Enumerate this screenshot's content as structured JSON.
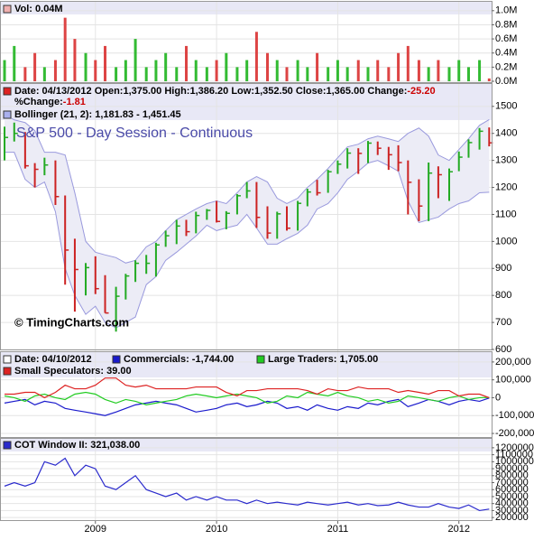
{
  "chart_data": [
    {
      "type": "bar",
      "legend": "Vol: 0.04M",
      "up_color": "#33bb33",
      "down_color": "#dd4444",
      "x": [
        2008.25,
        2008.33,
        2008.42,
        2008.5,
        2008.58,
        2008.67,
        2008.75,
        2008.83,
        2008.92,
        2009,
        2009.08,
        2009.17,
        2009.25,
        2009.33,
        2009.42,
        2009.5,
        2009.58,
        2009.67,
        2009.75,
        2009.83,
        2009.92,
        2010,
        2010.08,
        2010.17,
        2010.25,
        2010.33,
        2010.42,
        2010.5,
        2010.58,
        2010.67,
        2010.75,
        2010.83,
        2010.92,
        2011,
        2011.08,
        2011.17,
        2011.25,
        2011.33,
        2011.42,
        2011.5,
        2011.58,
        2011.67,
        2011.75,
        2011.83,
        2011.92,
        2012,
        2012.08,
        2012.17,
        2012.25
      ],
      "values": [
        0.3,
        0.5,
        0.2,
        0.4,
        0.2,
        0.3,
        0.9,
        0.6,
        0.4,
        0.3,
        0.5,
        0.2,
        0.3,
        0.6,
        0.2,
        0.3,
        0.4,
        0.2,
        0.5,
        0.3,
        0.2,
        0.3,
        0.4,
        0.2,
        0.3,
        0.7,
        0.4,
        0.3,
        0.2,
        0.3,
        0.2,
        0.4,
        0.2,
        0.3,
        0.2,
        0.3,
        0.2,
        0.3,
        0.2,
        0.4,
        0.5,
        0.3,
        0.2,
        0.3,
        0.2,
        0.3,
        0.2,
        0.3,
        0.04
      ],
      "xlim": [
        2008.22,
        2012.27
      ],
      "ylim": [
        0,
        1.1
      ],
      "yticks": [
        {
          "value": 0,
          "label": "0.0M"
        },
        {
          "value": 0.2,
          "label": "0.2M"
        },
        {
          "value": 0.4,
          "label": "0.4M"
        },
        {
          "value": 0.6,
          "label": "0.6M"
        },
        {
          "value": 0.8,
          "label": "0.8M"
        },
        {
          "value": 1,
          "label": "1.0M"
        }
      ]
    },
    {
      "type": "ohlc",
      "title": "S&P 500 - Day Session - Continuous",
      "annotation": "© TimingCharts.com",
      "header": [
        "Date: 04/13/2012",
        "Open:1,375.00",
        "High:1,386.20",
        "Low:1,352.50",
        "Close:1,365.00"
      ],
      "change": {
        "label": "Change:",
        "value": "-25.20"
      },
      "pct_change": {
        "label": "%Change:",
        "value": "-1.81"
      },
      "up_color": "#22aa22",
      "down_color": "#cc2222",
      "x": [
        2008.25,
        2008.33,
        2008.42,
        2008.5,
        2008.58,
        2008.67,
        2008.75,
        2008.83,
        2008.92,
        2009,
        2009.08,
        2009.17,
        2009.25,
        2009.33,
        2009.42,
        2009.5,
        2009.58,
        2009.67,
        2009.75,
        2009.83,
        2009.92,
        2010,
        2010.08,
        2010.17,
        2010.25,
        2010.33,
        2010.42,
        2010.5,
        2010.58,
        2010.67,
        2010.75,
        2010.83,
        2010.92,
        2011,
        2011.08,
        2011.17,
        2011.25,
        2011.33,
        2011.42,
        2011.5,
        2011.58,
        2011.67,
        2011.75,
        2011.83,
        2011.92,
        2012,
        2012.08,
        2012.17,
        2012.25
      ],
      "high": [
        1425,
        1440,
        1405,
        1290,
        1310,
        1300,
        1170,
        1010,
        920,
        945,
        875,
        832,
        880,
        930,
        950,
        995,
        1040,
        1080,
        1080,
        1110,
        1120,
        1150,
        1112,
        1175,
        1220,
        1220,
        1130,
        1110,
        1130,
        1150,
        1195,
        1228,
        1265,
        1300,
        1345,
        1345,
        1372,
        1370,
        1350,
        1356,
        1300,
        1230,
        1292,
        1278,
        1270,
        1333,
        1378,
        1420,
        1422
      ],
      "low": [
        1300,
        1370,
        1270,
        1200,
        1245,
        1135,
        840,
        740,
        800,
        805,
        735,
        666,
        785,
        850,
        880,
        870,
        980,
        990,
        1020,
        1030,
        1080,
        1070,
        1045,
        1100,
        1160,
        1050,
        1010,
        1010,
        1040,
        1040,
        1130,
        1170,
        1180,
        1250,
        1270,
        1250,
        1290,
        1320,
        1265,
        1260,
        1100,
        1075,
        1075,
        1160,
        1150,
        1260,
        1310,
        1340,
        1352
      ],
      "close": [
        1385,
        1400,
        1280,
        1267,
        1283,
        1166,
        968,
        896,
        903,
        825,
        735,
        797,
        872,
        919,
        919,
        987,
        1021,
        1057,
        1036,
        1096,
        1115,
        1074,
        1104,
        1169,
        1187,
        1089,
        1031,
        1102,
        1049,
        1141,
        1183,
        1180,
        1258,
        1286,
        1327,
        1326,
        1364,
        1345,
        1321,
        1292,
        1219,
        1131,
        1253,
        1247,
        1258,
        1312,
        1366,
        1408,
        1365
      ],
      "bollinger": {
        "name": "Bollinger (21, 2): 1,181.83 - 1,451.45",
        "color": "#9999dd",
        "fill": "#ececf6",
        "upper": [
          1470,
          1450,
          1440,
          1410,
          1330,
          1330,
          1320,
          1180,
          1000,
          960,
          950,
          940,
          920,
          930,
          980,
          1000,
          1040,
          1080,
          1100,
          1120,
          1140,
          1150,
          1140,
          1180,
          1220,
          1240,
          1220,
          1160,
          1140,
          1160,
          1200,
          1230,
          1270,
          1310,
          1350,
          1360,
          1380,
          1390,
          1380,
          1370,
          1400,
          1420,
          1390,
          1320,
          1300,
          1340,
          1380,
          1430,
          1451
        ],
        "lower": [
          1330,
          1330,
          1230,
          1200,
          1220,
          1110,
          900,
          800,
          730,
          760,
          700,
          680,
          700,
          720,
          840,
          870,
          930,
          960,
          990,
          1020,
          1060,
          1040,
          1050,
          1060,
          1100,
          1050,
          990,
          990,
          1010,
          1030,
          1060,
          1120,
          1140,
          1180,
          1230,
          1260,
          1290,
          1300,
          1280,
          1260,
          1150,
          1070,
          1080,
          1090,
          1120,
          1140,
          1150,
          1180,
          1182
        ]
      },
      "xlim": [
        2008.22,
        2012.27
      ],
      "ylim": [
        600,
        1583
      ],
      "yticks": [
        600,
        700,
        800,
        900,
        1000,
        1100,
        1200,
        1300,
        1400,
        1500
      ]
    },
    {
      "type": "line",
      "header": "Date: 04/10/2012",
      "x": [
        2008.25,
        2008.33,
        2008.42,
        2008.5,
        2008.58,
        2008.67,
        2008.75,
        2008.83,
        2008.92,
        2009,
        2009.08,
        2009.17,
        2009.25,
        2009.33,
        2009.42,
        2009.5,
        2009.58,
        2009.67,
        2009.75,
        2009.83,
        2009.92,
        2010,
        2010.08,
        2010.17,
        2010.25,
        2010.33,
        2010.42,
        2010.5,
        2010.58,
        2010.67,
        2010.75,
        2010.83,
        2010.92,
        2011,
        2011.08,
        2011.17,
        2011.25,
        2011.33,
        2011.42,
        2011.5,
        2011.58,
        2011.67,
        2011.75,
        2011.83,
        2011.92,
        2012,
        2012.08,
        2012.17,
        2012.25
      ],
      "series": [
        {
          "name": "Commercials: -1,744.00",
          "color": "#1a1acc",
          "values": [
            -30000,
            -20000,
            -10000,
            -40000,
            -20000,
            -30000,
            -60000,
            -70000,
            -80000,
            -90000,
            -100000,
            -80000,
            -60000,
            -40000,
            -30000,
            -20000,
            -30000,
            -40000,
            -60000,
            -80000,
            -70000,
            -60000,
            -40000,
            -30000,
            -50000,
            -40000,
            -20000,
            -30000,
            -60000,
            -50000,
            -70000,
            -40000,
            -60000,
            -70000,
            -50000,
            -60000,
            -30000,
            -40000,
            -20000,
            -10000,
            -50000,
            -30000,
            -10000,
            -20000,
            -40000,
            -20000,
            -10000,
            -20000,
            -1744
          ]
        },
        {
          "name": "Large Traders: 1,705.00",
          "color": "#22cc22",
          "values": [
            10000,
            0,
            -20000,
            10000,
            20000,
            0,
            -10000,
            20000,
            30000,
            20000,
            -10000,
            -30000,
            -10000,
            -20000,
            -40000,
            -30000,
            -20000,
            -10000,
            10000,
            20000,
            10000,
            0,
            10000,
            20000,
            10000,
            0,
            -30000,
            -20000,
            10000,
            0,
            30000,
            20000,
            10000,
            30000,
            10000,
            0,
            -20000,
            -10000,
            -30000,
            -20000,
            10000,
            0,
            -10000,
            -20000,
            0,
            10000,
            -10000,
            0,
            1705
          ]
        },
        {
          "name": "Small Speculators: 39.00",
          "color": "#dd2222",
          "values": [
            20000,
            20000,
            30000,
            30000,
            0,
            30000,
            70000,
            50000,
            50000,
            70000,
            110000,
            110000,
            70000,
            60000,
            70000,
            50000,
            50000,
            50000,
            50000,
            60000,
            60000,
            60000,
            30000,
            10000,
            40000,
            40000,
            50000,
            50000,
            50000,
            50000,
            40000,
            20000,
            50000,
            40000,
            40000,
            60000,
            50000,
            50000,
            50000,
            30000,
            40000,
            30000,
            20000,
            40000,
            40000,
            10000,
            20000,
            20000,
            39
          ]
        }
      ],
      "xlim": [
        2008.22,
        2012.27
      ],
      "ylim": [
        -215000,
        255000
      ],
      "yticks": [
        {
          "value": 200000,
          "label": "200,000"
        },
        {
          "value": 100000,
          "label": "100,000"
        },
        0,
        {
          "value": -100000,
          "label": "-100,000"
        },
        {
          "value": -200000,
          "label": "-200,000"
        }
      ]
    },
    {
      "type": "line",
      "x": [
        2008.25,
        2008.33,
        2008.42,
        2008.5,
        2008.58,
        2008.67,
        2008.75,
        2008.83,
        2008.92,
        2009,
        2009.08,
        2009.17,
        2009.25,
        2009.33,
        2009.42,
        2009.5,
        2009.58,
        2009.67,
        2009.75,
        2009.83,
        2009.92,
        2010,
        2010.08,
        2010.17,
        2010.25,
        2010.33,
        2010.42,
        2010.5,
        2010.58,
        2010.67,
        2010.75,
        2010.83,
        2010.92,
        2011,
        2011.08,
        2011.17,
        2011.25,
        2011.33,
        2011.42,
        2011.5,
        2011.58,
        2011.67,
        2011.75,
        2011.83,
        2011.92,
        2012,
        2012.08,
        2012.17,
        2012.25
      ],
      "series": [
        {
          "name": "COT Window II: 321,038.00",
          "color": "#2a2acc",
          "values": [
            650000,
            700000,
            650000,
            700000,
            1000000,
            950000,
            1050000,
            800000,
            950000,
            900000,
            650000,
            600000,
            700000,
            800000,
            600000,
            550000,
            500000,
            550000,
            450000,
            500000,
            450000,
            500000,
            450000,
            450000,
            400000,
            450000,
            400000,
            420000,
            400000,
            380000,
            420000,
            400000,
            380000,
            400000,
            420000,
            380000,
            400000,
            370000,
            380000,
            420000,
            380000,
            350000,
            350000,
            400000,
            350000,
            330000,
            380000,
            300000,
            321038
          ]
        }
      ],
      "xlim": [
        2008.22,
        2012.27
      ],
      "ylim": [
        150000,
        1315000
      ],
      "yticks": [
        200000,
        300000,
        400000,
        500000,
        600000,
        700000,
        800000,
        900000,
        1000000,
        1100000,
        1200000
      ],
      "xticks": [
        2009,
        2010,
        2011,
        2012
      ]
    }
  ]
}
